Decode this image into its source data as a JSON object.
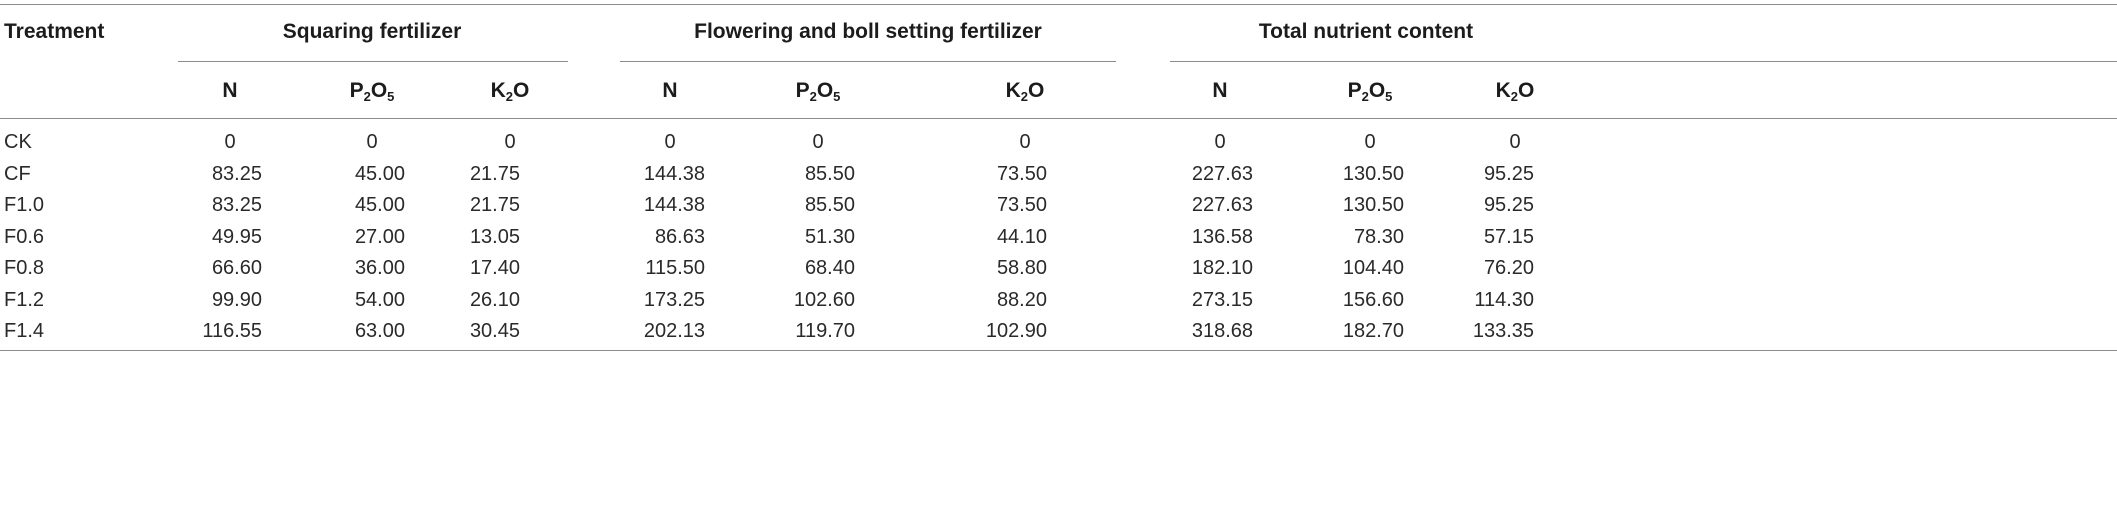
{
  "header": {
    "treatment": "Treatment",
    "groups": [
      "Squaring fertilizer",
      "Flowering and boll setting fertilizer",
      "Total nutrient content"
    ],
    "subcols": [
      {
        "main": "N",
        "sub": "",
        "tail": ""
      },
      {
        "main": "P",
        "sub": "2",
        "tail": "O",
        "sub2": "5"
      },
      {
        "main": "K",
        "sub": "2",
        "tail": "O",
        "sub2": ""
      }
    ]
  },
  "rows": [
    {
      "label": "CK",
      "values": [
        "0",
        "0",
        "0",
        "0",
        "0",
        "0",
        "0",
        "0",
        "0"
      ]
    },
    {
      "label": "CF",
      "values": [
        "83.25",
        "45.00",
        "21.75",
        "144.38",
        "85.50",
        "73.50",
        "227.63",
        "130.50",
        "95.25"
      ]
    },
    {
      "label": "F1.0",
      "values": [
        "83.25",
        "45.00",
        "21.75",
        "144.38",
        "85.50",
        "73.50",
        "227.63",
        "130.50",
        "95.25"
      ]
    },
    {
      "label": "F0.6",
      "values": [
        "49.95",
        "27.00",
        "13.05",
        "86.63",
        "51.30",
        "44.10",
        "136.58",
        "78.30",
        "57.15"
      ]
    },
    {
      "label": "F0.8",
      "values": [
        "66.60",
        "36.00",
        "17.40",
        "115.50",
        "68.40",
        "58.80",
        "182.10",
        "104.40",
        "76.20"
      ]
    },
    {
      "label": "F1.2",
      "values": [
        "99.90",
        "54.00",
        "26.10",
        "173.25",
        "102.60",
        "88.20",
        "273.15",
        "156.60",
        "114.30"
      ]
    },
    {
      "label": "F1.4",
      "values": [
        "116.55",
        "63.00",
        "30.45",
        "202.13",
        "119.70",
        "102.90",
        "318.68",
        "182.70",
        "133.35"
      ]
    }
  ]
}
